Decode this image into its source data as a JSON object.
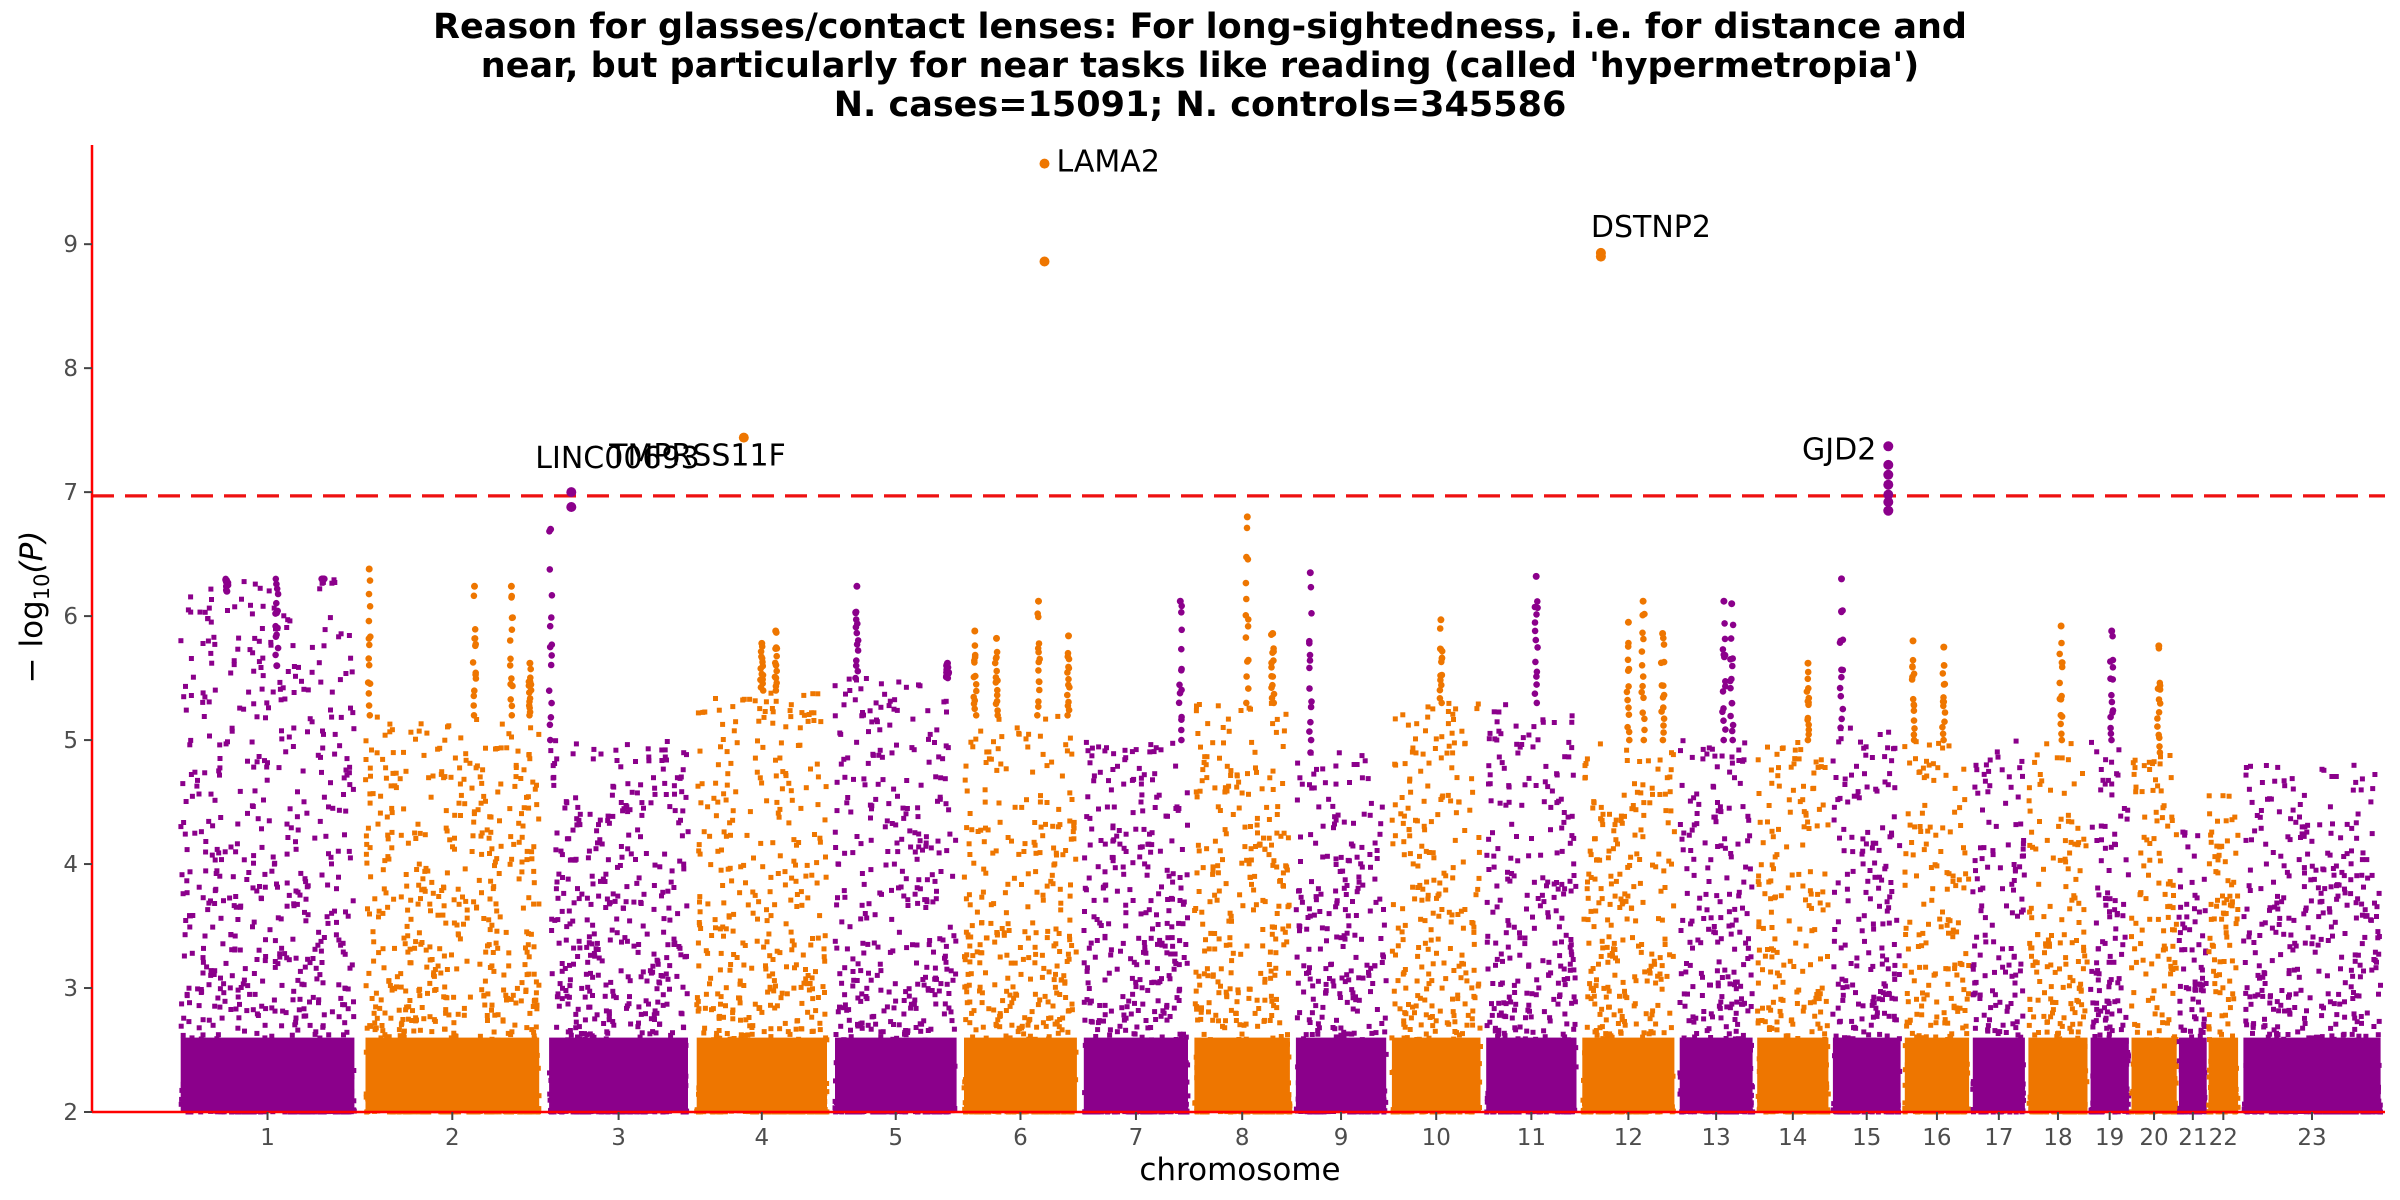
{
  "chart_data": {
    "type": "scatter",
    "title_lines": [
      "Reason for glasses/contact lenses: For long-sightedness, i.e. for distance and",
      "near, but particularly for near tasks like reading (called 'hypermetropia')",
      "N. cases=15091; N. controls=345586"
    ],
    "xlabel": "chromosome",
    "ylabel_main": "− log",
    "ylabel_sub": "10",
    "ylabel_tail": "(P)",
    "ylim": [
      2,
      9.8
    ],
    "yticks": [
      2,
      3,
      4,
      5,
      6,
      7,
      8,
      9
    ],
    "ytick_labels": [
      "2",
      "3",
      "4",
      "5",
      "6",
      "7",
      "8",
      "9"
    ],
    "significance_threshold": 6.97,
    "series_colors": [
      "#8b008b",
      "#ee7600"
    ],
    "axis_color": "#ff0000",
    "threshold_color": "#ee1111",
    "chromosomes": [
      {
        "label": "1",
        "start": 0.0,
        "end": 1.0,
        "color": "#8b008b",
        "top": 6.3,
        "peaks": [
          [
            0.28,
            6.2
          ],
          [
            0.55,
            5.6
          ],
          [
            0.8,
            6.3
          ]
        ]
      },
      {
        "label": "2",
        "start": 1.0,
        "end": 2.0,
        "color": "#ee7600",
        "top": 5.2,
        "peaks": [
          [
            0.05,
            6.38
          ],
          [
            0.62,
            6.24
          ],
          [
            0.82,
            6.24
          ],
          [
            0.92,
            5.62
          ]
        ]
      },
      {
        "label": "3",
        "start": 2.0,
        "end": 2.8,
        "color": "#8b008b",
        "top": 5.0,
        "peaks": [
          [
            0.04,
            6.7
          ]
        ]
      },
      {
        "label": "4",
        "start": 2.8,
        "end": 3.55,
        "color": "#ee7600",
        "top": 5.4,
        "peaks": [
          [
            0.5,
            5.78
          ],
          [
            0.6,
            5.88
          ]
        ]
      },
      {
        "label": "5",
        "start": 3.55,
        "end": 4.25,
        "color": "#8b008b",
        "top": 5.5,
        "peaks": [
          [
            0.2,
            6.24
          ],
          [
            0.9,
            5.62
          ]
        ]
      },
      {
        "label": "6",
        "start": 4.25,
        "end": 4.9,
        "color": "#ee7600",
        "top": 5.2,
        "peaks": [
          [
            0.12,
            5.88
          ],
          [
            0.3,
            5.82
          ],
          [
            0.65,
            6.12
          ],
          [
            0.9,
            5.84
          ]
        ]
      },
      {
        "label": "7",
        "start": 4.9,
        "end": 5.5,
        "color": "#8b008b",
        "top": 5.0,
        "peaks": [
          [
            0.9,
            6.12
          ]
        ]
      },
      {
        "label": "8",
        "start": 5.5,
        "end": 6.05,
        "color": "#ee7600",
        "top": 5.3,
        "peaks": [
          [
            0.55,
            6.8
          ],
          [
            0.8,
            5.86
          ]
        ]
      },
      {
        "label": "9",
        "start": 6.05,
        "end": 6.57,
        "color": "#8b008b",
        "top": 4.9,
        "peaks": [
          [
            0.18,
            6.35
          ]
        ]
      },
      {
        "label": "10",
        "start": 6.57,
        "end": 7.08,
        "color": "#ee7600",
        "top": 5.3,
        "peaks": [
          [
            0.55,
            5.97
          ]
        ]
      },
      {
        "label": "11",
        "start": 7.08,
        "end": 7.6,
        "color": "#8b008b",
        "top": 5.3,
        "peaks": [
          [
            0.55,
            6.32
          ]
        ]
      },
      {
        "label": "12",
        "start": 7.6,
        "end": 8.13,
        "color": "#ee7600",
        "top": 5.0,
        "peaks": [
          [
            0.5,
            5.95
          ],
          [
            0.65,
            6.12
          ],
          [
            0.85,
            5.86
          ]
        ]
      },
      {
        "label": "13",
        "start": 8.13,
        "end": 8.55,
        "color": "#8b008b",
        "top": 5.0,
        "peaks": [
          [
            0.6,
            6.12
          ],
          [
            0.7,
            6.1
          ]
        ]
      },
      {
        "label": "14",
        "start": 8.55,
        "end": 8.96,
        "color": "#ee7600",
        "top": 5.0,
        "peaks": [
          [
            0.7,
            5.62
          ]
        ]
      },
      {
        "label": "15",
        "start": 8.96,
        "end": 9.35,
        "color": "#8b008b",
        "top": 5.1,
        "peaks": [
          [
            0.15,
            6.3
          ]
        ]
      },
      {
        "label": "16",
        "start": 9.35,
        "end": 9.72,
        "color": "#ee7600",
        "top": 5.0,
        "peaks": [
          [
            0.15,
            5.8
          ],
          [
            0.6,
            5.75
          ]
        ]
      },
      {
        "label": "17",
        "start": 9.72,
        "end": 10.02,
        "color": "#8b008b",
        "top": 5.0,
        "peaks": []
      },
      {
        "label": "18",
        "start": 10.02,
        "end": 10.36,
        "color": "#ee7600",
        "top": 5.0,
        "peaks": [
          [
            0.55,
            5.92
          ]
        ]
      },
      {
        "label": "19",
        "start": 10.36,
        "end": 10.58,
        "color": "#8b008b",
        "top": 5.0,
        "peaks": [
          [
            0.55,
            5.88
          ]
        ]
      },
      {
        "label": "20",
        "start": 10.58,
        "end": 10.84,
        "color": "#ee7600",
        "top": 4.9,
        "peaks": [
          [
            0.6,
            5.76
          ]
        ]
      },
      {
        "label": "21",
        "start": 10.84,
        "end": 11.0,
        "color": "#8b008b",
        "top": 4.3,
        "peaks": []
      },
      {
        "label": "22",
        "start": 11.0,
        "end": 11.17,
        "color": "#ee7600",
        "top": 4.6,
        "peaks": []
      },
      {
        "label": "23",
        "start": 11.17,
        "end": 11.96,
        "color": "#8b008b",
        "top": 4.8,
        "peaks": []
      }
    ],
    "x_range": [
      -0.45,
      11.96
    ],
    "hits": [
      {
        "gene": "LAMA2",
        "chrom": 5,
        "pos": 0.7,
        "p": 9.65,
        "color": "#ee7600",
        "extra": [
          8.86
        ]
      },
      {
        "gene": "DSTNP2",
        "chrom": 11,
        "pos": 0.22,
        "p": 8.93,
        "color": "#ee7600",
        "extra": [
          8.9
        ]
      },
      {
        "gene": "GJD2",
        "chrom": 14,
        "pos": 0.8,
        "p": 7.37,
        "color": "#8b008b",
        "extra": [
          7.22,
          7.14,
          7.06,
          6.98,
          6.92,
          6.85
        ]
      },
      {
        "gene": "TMPRSS11F",
        "chrom": 3,
        "pos": 0.37,
        "p": 7.44,
        "color": "#ee7600",
        "extra": []
      },
      {
        "gene": "LINC00693",
        "chrom": 2,
        "pos": 0.18,
        "p": 7.0,
        "color": "#8b008b",
        "extra": [
          6.88
        ]
      }
    ]
  }
}
